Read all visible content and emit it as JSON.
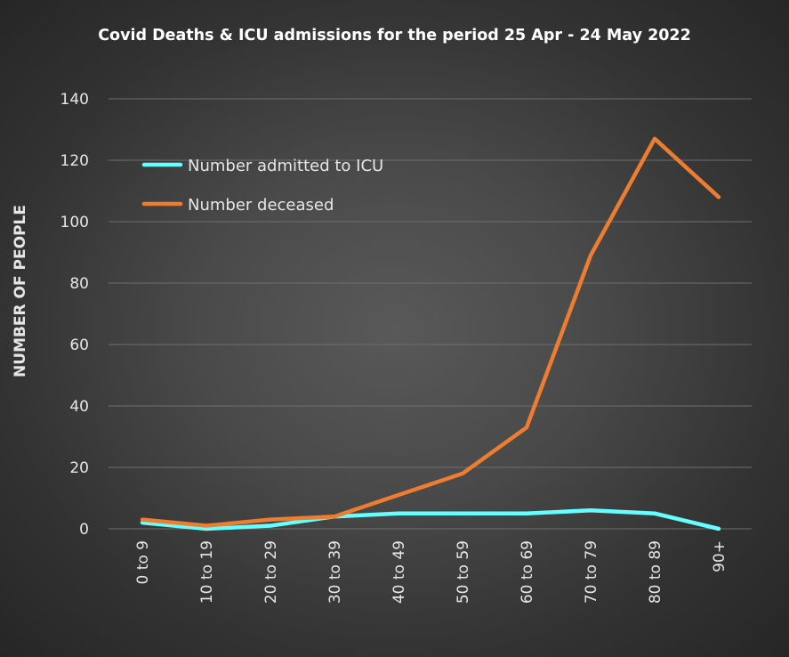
{
  "chart_data": {
    "type": "line",
    "title": "Covid Deaths & ICU admissions for the period 25 Apr - 24 May 2022",
    "xlabel": "",
    "ylabel": "NUMBER OF PEOPLE",
    "categories": [
      "0 to 9",
      "10 to 19",
      "20 to 29",
      "30 to 39",
      "40 to 49",
      "50 to 59",
      "60 to 69",
      "70 to 79",
      "80 to 89",
      "90+"
    ],
    "ylim": [
      0,
      140
    ],
    "yticks": [
      0,
      20,
      40,
      60,
      80,
      100,
      120,
      140
    ],
    "grid": true,
    "legend_position": "top-left",
    "series": [
      {
        "name": "Number admitted to ICU",
        "color": "#66ffff",
        "values": [
          2,
          0,
          1,
          4,
          5,
          5,
          5,
          6,
          5,
          0
        ]
      },
      {
        "name": "Number deceased",
        "color": "#ed7d31",
        "values": [
          3,
          1,
          3,
          4,
          11,
          18,
          33,
          89,
          127,
          108
        ]
      }
    ]
  }
}
